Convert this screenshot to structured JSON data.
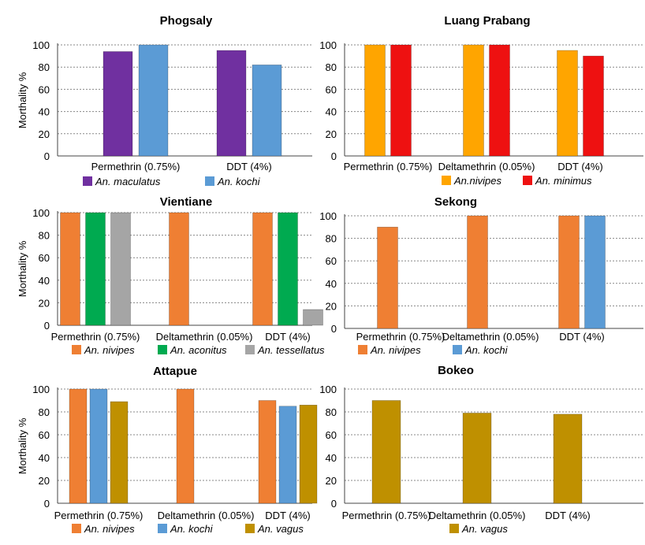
{
  "colors": {
    "purple": "#7030a0",
    "blue": "#5b9bd5",
    "orange_bright": "#ffa500",
    "red": "#ee1111",
    "orange": "#ef7f33",
    "green": "#00aa50",
    "gray": "#a5a5a5",
    "olive": "#bf9000",
    "grid": "#888888"
  },
  "chart_data": [
    {
      "type": "bar",
      "title": "Phogsaly",
      "ylabel": "Morthality %",
      "ylim": [
        0,
        100
      ],
      "yticks": [
        "0",
        "20",
        "40",
        "60",
        "80",
        "100"
      ],
      "categories": [
        "Permethrin (0.75%)",
        "DDT (4%)"
      ],
      "grid": true,
      "legend_position": "bottom",
      "series": [
        {
          "name": "An. maculatus",
          "color": "#7030a0",
          "values": [
            94,
            95
          ]
        },
        {
          "name": "An. kochi",
          "color": "#5b9bd5",
          "values": [
            100,
            82
          ]
        }
      ]
    },
    {
      "type": "bar",
      "title": "Luang Prabang",
      "ylabel": "",
      "ylim": [
        0,
        100
      ],
      "yticks": [
        "0",
        "20",
        "40",
        "60",
        "80",
        "100"
      ],
      "categories": [
        "Permethrin (0.75%)",
        "Deltamethrin (0.05%)",
        "DDT (4%)"
      ],
      "grid": true,
      "legend_position": "bottom",
      "series": [
        {
          "name": "An.nivipes",
          "color": "#ffa500",
          "values": [
            100,
            100,
            95
          ]
        },
        {
          "name": "An. minimus",
          "color": "#ee1111",
          "values": [
            100,
            100,
            90
          ]
        }
      ]
    },
    {
      "type": "bar",
      "title": "Vientiane",
      "ylabel": "Morthality %",
      "ylim": [
        0,
        100
      ],
      "yticks": [
        "0",
        "20",
        "40",
        "60",
        "80",
        "100"
      ],
      "categories": [
        "Permethrin (0.75%)",
        "Deltamethrin (0.05%)",
        "DDT (4%)"
      ],
      "grid": true,
      "legend_position": "bottom",
      "series": [
        {
          "name": "An. nivipes",
          "color": "#ef7f33",
          "values": [
            100,
            100,
            100
          ]
        },
        {
          "name": "An. aconitus",
          "color": "#00aa50",
          "values": [
            100,
            null,
            100
          ]
        },
        {
          "name": "An. tessellatus",
          "color": "#a5a5a5",
          "values": [
            100,
            null,
            14
          ]
        }
      ]
    },
    {
      "type": "bar",
      "title": "Sekong",
      "ylabel": "",
      "ylim": [
        0,
        100
      ],
      "yticks": [
        "0",
        "20",
        "40",
        "60",
        "80",
        "100"
      ],
      "categories": [
        "Permethrin (0.75%)",
        "Deltamethrin (0.05%)",
        "DDT (4%)"
      ],
      "grid": true,
      "legend_position": "bottom",
      "series": [
        {
          "name": "An. nivipes",
          "color": "#ef7f33",
          "values": [
            90,
            100,
            100
          ]
        },
        {
          "name": "An. kochi",
          "color": "#5b9bd5",
          "values": [
            null,
            null,
            100
          ]
        }
      ]
    },
    {
      "type": "bar",
      "title": "Attapue",
      "ylabel": "Morthality %",
      "ylim": [
        0,
        100
      ],
      "yticks": [
        "0",
        "20",
        "40",
        "60",
        "80",
        "100"
      ],
      "categories": [
        "Permethrin (0.75%)",
        "Deltamethrin (0.05%)",
        "DDT (4%)"
      ],
      "grid": true,
      "legend_position": "bottom",
      "series": [
        {
          "name": "An. nivipes",
          "color": "#ef7f33",
          "values": [
            100,
            100,
            90
          ]
        },
        {
          "name": "An. kochi",
          "color": "#5b9bd5",
          "values": [
            100,
            null,
            85
          ]
        },
        {
          "name": "An. vagus",
          "color": "#bf9000",
          "values": [
            89,
            null,
            86
          ]
        }
      ]
    },
    {
      "type": "bar",
      "title": "Bokeo",
      "ylabel": "",
      "ylim": [
        0,
        100
      ],
      "yticks": [
        "0",
        "20",
        "40",
        "60",
        "80",
        "100"
      ],
      "categories": [
        "Permethrin (0.75%)",
        "Deltamethrin (0.05%)",
        "DDT (4%)"
      ],
      "grid": true,
      "legend_position": "bottom",
      "series": [
        {
          "name": "An. vagus",
          "color": "#bf9000",
          "values": [
            90,
            79,
            78
          ]
        }
      ]
    }
  ]
}
